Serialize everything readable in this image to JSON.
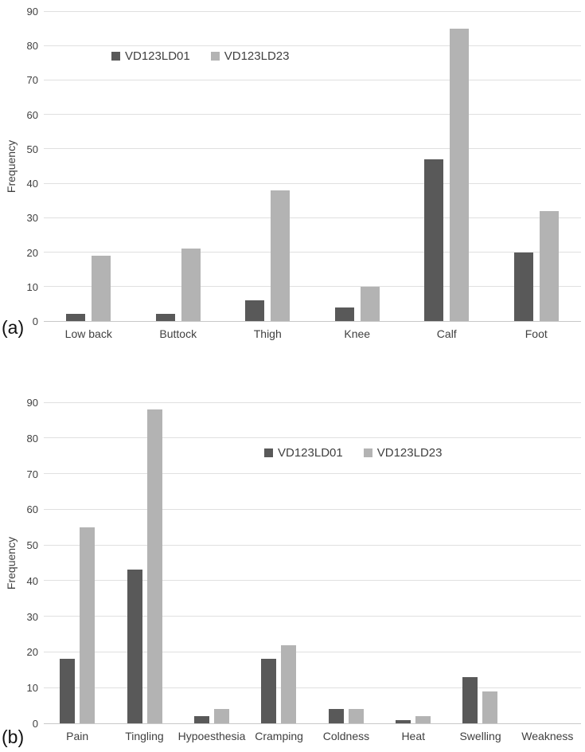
{
  "figure": {
    "background": "#ffffff",
    "text_color": "#404040",
    "gridline_color": "#e0e0e0",
    "axis_color": "#c8c8c8"
  },
  "chart_data": [
    {
      "type": "bar",
      "panel_label": "(a)",
      "title": "",
      "xlabel": "",
      "ylabel": "Frequency",
      "ylim": [
        0,
        90
      ],
      "ytick_step": 10,
      "grid": true,
      "legend_position": "top-center",
      "categories": [
        "Low back",
        "Buttock",
        "Thigh",
        "Knee",
        "Calf",
        "Foot"
      ],
      "series": [
        {
          "name": "VD123LD01",
          "color": "#595959",
          "values": [
            2,
            2,
            6,
            4,
            47,
            20
          ]
        },
        {
          "name": "VD123LD23",
          "color": "#b3b3b3",
          "values": [
            19,
            21,
            38,
            10,
            85,
            32
          ]
        }
      ]
    },
    {
      "type": "bar",
      "panel_label": "(b)",
      "title": "",
      "xlabel": "",
      "ylabel": "Frequency",
      "ylim": [
        0,
        90
      ],
      "ytick_step": 10,
      "grid": true,
      "legend_position": "upper-right",
      "categories": [
        "Pain",
        "Tingling",
        "Hypoesthesia",
        "Cramping",
        "Coldness",
        "Heat",
        "Swelling",
        "Weakness"
      ],
      "series": [
        {
          "name": "VD123LD01",
          "color": "#595959",
          "values": [
            18,
            43,
            2,
            18,
            4,
            1,
            13,
            0
          ]
        },
        {
          "name": "VD123LD23",
          "color": "#b3b3b3",
          "values": [
            55,
            88,
            4,
            22,
            4,
            2,
            9,
            0
          ]
        }
      ]
    }
  ]
}
